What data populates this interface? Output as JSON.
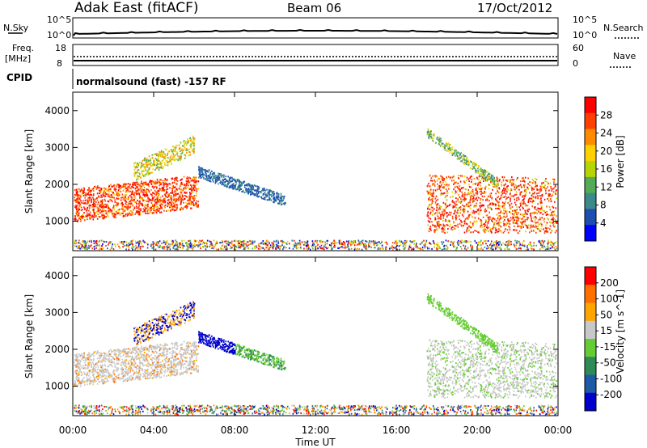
{
  "header": {
    "station": "Adak East (fitACF)",
    "beam": "Beam 06",
    "date": "17/Oct/2012"
  },
  "top_panels": {
    "sky_label": "N.Sky",
    "search_label": "N.Search",
    "sky_ticks": [
      "10^5",
      "10^0"
    ],
    "search_ticks": [
      "10^5",
      "10^0"
    ],
    "freq_label_1": "Freq.",
    "freq_label_2": "[MHz]",
    "freq_ticks": [
      "18",
      "8"
    ],
    "nave_label": "Nave",
    "nave_ticks": [
      "60",
      "0"
    ],
    "cpid_label": "CPID",
    "cpid_text": "normalsound (fast) -157 RF"
  },
  "x_axis": {
    "label": "Time UT",
    "ticks": [
      "00:00",
      "04:00",
      "08:00",
      "12:00",
      "16:00",
      "20:00",
      "00:00"
    ]
  },
  "power_panel": {
    "ylabel": "Slant Range [km]",
    "yticks": [
      "4000",
      "3000",
      "2000",
      "1000"
    ],
    "colorbar_label": "Power [dB]",
    "colorbar_ticks": [
      "28",
      "24",
      "20",
      "16",
      "12",
      "8",
      "4"
    ],
    "colors": [
      "#0000ff",
      "#1e4fb0",
      "#3a8a8a",
      "#55aa55",
      "#b6d400",
      "#ffd000",
      "#ff8c00",
      "#ff4000",
      "#ff0000"
    ]
  },
  "velocity_panel": {
    "ylabel": "Slant Range [km]",
    "yticks": [
      "4000",
      "3000",
      "2000",
      "1000"
    ],
    "colorbar_label": "Velocity [m s^-1]",
    "colorbar_ticks": [
      "200",
      "100",
      "50",
      "15",
      "-15",
      "-50",
      "-100",
      "-200"
    ],
    "colors": [
      "#0000cc",
      "#1e5aa8",
      "#2e8b57",
      "#66cc33",
      "#c8c8c8",
      "#ffa500",
      "#ff7000",
      "#ff0000"
    ]
  },
  "chart_data": {
    "type": "heatmap",
    "x": [
      "00:00",
      "04:00",
      "08:00",
      "12:00",
      "16:00",
      "20:00",
      "00:00"
    ],
    "y_range_km": [
      200,
      4500
    ],
    "series": [
      {
        "name": "Power [dB]",
        "range": [
          0,
          30
        ],
        "colorbar_ticks": [
          28,
          24,
          20,
          16,
          12,
          8,
          4
        ]
      },
      {
        "name": "Velocity [m s^-1]",
        "range": [
          -250,
          250
        ],
        "colorbar_ticks": [
          200,
          100,
          50,
          15,
          -15,
          -50,
          -100,
          -200
        ]
      }
    ]
  }
}
